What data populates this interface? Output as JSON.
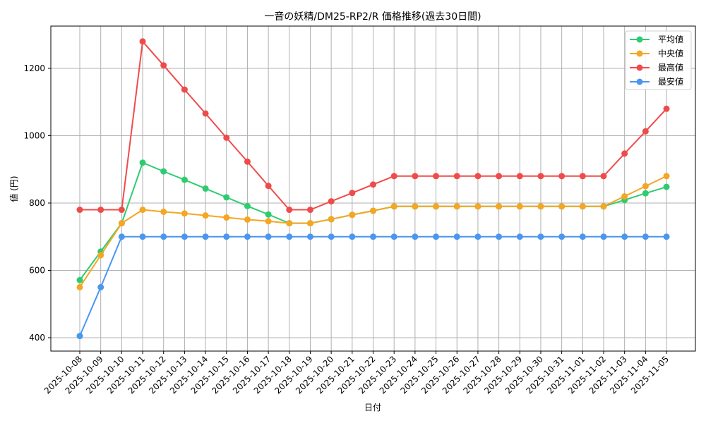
{
  "chart_data": {
    "type": "line",
    "title": "一音の妖精/DM25-RP2/R 価格推移(過去30日間)",
    "xlabel": "日付",
    "ylabel": "値 (円)",
    "ylim": [
      360,
      1325
    ],
    "yticks": [
      400,
      600,
      800,
      1000,
      1200
    ],
    "grid": true,
    "legend_position": "upper right",
    "categories": [
      "2025-10-08",
      "2025-10-09",
      "2025-10-10",
      "2025-10-11",
      "2025-10-12",
      "2025-10-13",
      "2025-10-14",
      "2025-10-15",
      "2025-10-16",
      "2025-10-17",
      "2025-10-18",
      "2025-10-19",
      "2025-10-20",
      "2025-10-21",
      "2025-10-22",
      "2025-10-23",
      "2025-10-24",
      "2025-10-25",
      "2025-10-26",
      "2025-10-27",
      "2025-10-28",
      "2025-10-29",
      "2025-10-30",
      "2025-10-31",
      "2025-11-01",
      "2025-11-02",
      "2025-11-03",
      "2025-11-04",
      "2025-11-05"
    ],
    "series": [
      {
        "name": "平均値",
        "color": "#2ecc71",
        "values": [
          571,
          656,
          740,
          920,
          894,
          869,
          843,
          817,
          791,
          766,
          740,
          740,
          752,
          765,
          777,
          790,
          790,
          790,
          790,
          790,
          790,
          790,
          790,
          790,
          790,
          790,
          809,
          829,
          848
        ]
      },
      {
        "name": "中央値",
        "color": "#f5a623",
        "values": [
          550,
          645,
          740,
          780,
          774,
          769,
          763,
          757,
          751,
          746,
          740,
          740,
          752,
          765,
          777,
          790,
          790,
          790,
          790,
          790,
          790,
          790,
          790,
          790,
          790,
          790,
          820,
          850,
          880
        ]
      },
      {
        "name": "最高値",
        "color": "#f04b4b",
        "values": [
          780,
          780,
          780,
          1280,
          1209,
          1137,
          1066,
          994,
          923,
          851,
          780,
          780,
          805,
          830,
          855,
          880,
          880,
          880,
          880,
          880,
          880,
          880,
          880,
          880,
          880,
          880,
          947,
          1013,
          1080
        ]
      },
      {
        "name": "最安値",
        "color": "#4a96f0",
        "values": [
          405,
          550,
          700,
          700,
          700,
          700,
          700,
          700,
          700,
          700,
          700,
          700,
          700,
          700,
          700,
          700,
          700,
          700,
          700,
          700,
          700,
          700,
          700,
          700,
          700,
          700,
          700,
          700,
          700
        ]
      }
    ]
  }
}
